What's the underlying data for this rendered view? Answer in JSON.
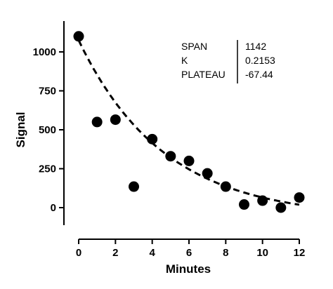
{
  "chart_data": {
    "type": "scatter",
    "title": "",
    "xlabel": "Minutes",
    "ylabel": "Signal",
    "xlim": [
      0,
      12
    ],
    "ylim": [
      -100,
      1150
    ],
    "x_ticks": [
      "0",
      "2",
      "4",
      "6",
      "8",
      "10",
      "12"
    ],
    "y_ticks": [
      "0",
      "250",
      "500",
      "750",
      "1000"
    ],
    "grid": false,
    "legend": "none",
    "points": {
      "x": [
        0,
        1,
        2,
        3,
        4,
        5,
        6,
        7,
        8,
        9,
        10,
        11,
        12
      ],
      "y": [
        1100,
        550,
        565,
        135,
        440,
        330,
        300,
        220,
        135,
        20,
        45,
        0,
        65
      ]
    },
    "fit_curve": {
      "model": "one-phase exponential decay",
      "style": "dashed",
      "span": 1142,
      "k": 0.2153,
      "plateau": -67.44
    },
    "parameters_table": {
      "labels": [
        "SPAN",
        "K",
        "PLATEAU"
      ],
      "values": [
        "1142",
        "0.2153",
        "-67.44"
      ]
    },
    "colors": {
      "points": "#000000",
      "curve": "#000000",
      "axes": "#000000"
    }
  }
}
